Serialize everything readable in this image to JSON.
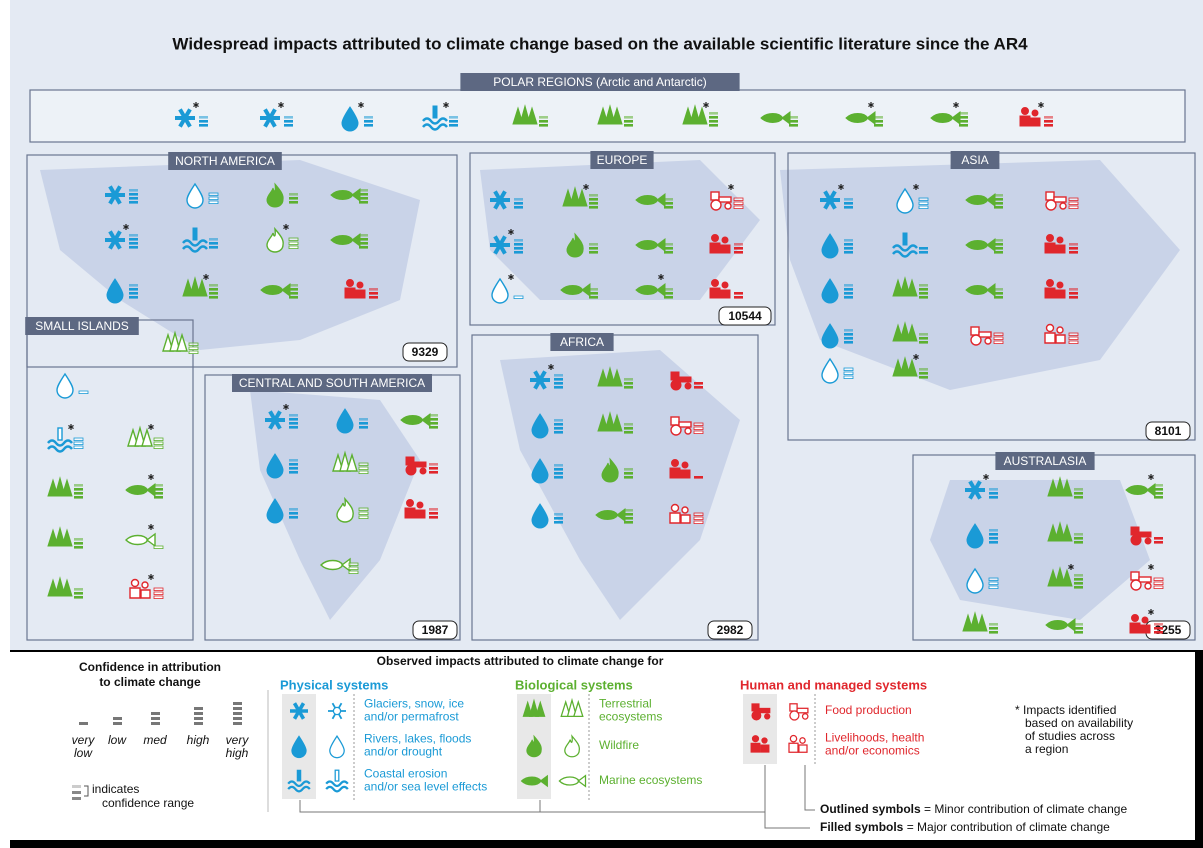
{
  "title": "Widespread impacts attributed to climate change based on the available scientific literature since the AR4",
  "regions": [
    {
      "name": "POLAR REGIONS (Arctic and Antarctic)"
    },
    {
      "name": "NORTH AMERICA",
      "count": "9329"
    },
    {
      "name": "EUROPE",
      "count": "10544"
    },
    {
      "name": "ASIA",
      "count": "8101"
    },
    {
      "name": "SMALL ISLANDS"
    },
    {
      "name": "CENTRAL AND SOUTH AMERICA",
      "count": "1987"
    },
    {
      "name": "AFRICA",
      "count": "2982"
    },
    {
      "name": "AUSTRALASIA",
      "count": "3255"
    }
  ],
  "legend": {
    "confidence_title": [
      "Confidence in attribution",
      "to climate change"
    ],
    "levels": [
      [
        "very",
        "low"
      ],
      [
        "low"
      ],
      [
        "med"
      ],
      [
        "high"
      ],
      [
        "very",
        "high"
      ]
    ],
    "range_note": [
      "indicates",
      "confidence range"
    ],
    "observed_title": "Observed impacts attributed to climate change for",
    "groups": [
      {
        "title": "Physical systems",
        "items": [
          [
            "Glaciers, snow, ice",
            "and/or permafrost"
          ],
          [
            "Rivers, lakes, floods",
            "and/or drought"
          ],
          [
            "Coastal erosion",
            "and/or sea level effects"
          ]
        ]
      },
      {
        "title": "Biological systems",
        "items": [
          [
            "Terrestrial",
            "ecosystems"
          ],
          [
            "Wildfire"
          ],
          [
            "Marine ecosystems"
          ]
        ]
      },
      {
        "title": "Human and managed systems",
        "items": [
          [
            "Food production"
          ],
          [
            "Livelihoods, health",
            "and/or economics"
          ]
        ]
      }
    ],
    "star_note": [
      "* Impacts identified",
      "based on availability",
      "of studies across",
      "a region"
    ],
    "outlined": [
      "Outlined symbols",
      " = Minor contribution of climate change"
    ],
    "filled": [
      "Filled symbols",
      " = Major contribution of climate change"
    ]
  }
}
